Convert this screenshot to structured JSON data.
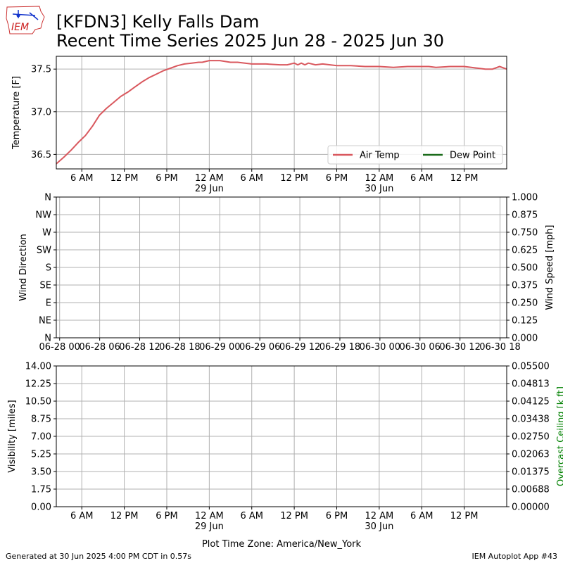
{
  "header": {
    "logo_text": "IEM",
    "title_line1": "[KFDN3] Kelly Falls Dam",
    "title_line2": "Recent Time Series 2025 Jun 28 - 2025 Jun 30"
  },
  "footer": {
    "generated": "Generated at 30 Jun 2025 4:00 PM CDT in 0.57s",
    "app": "IEM Autoplot App #43",
    "timezone": "Plot Time Zone: America/New_York"
  },
  "colors": {
    "air_temp": "#d9585e",
    "dew_point": "#1a6b1a",
    "grid": "#b0b0b0",
    "ceiling_label": "#008000"
  },
  "chart_data": [
    {
      "type": "line",
      "ylabel": "Temperature [F]",
      "ylim": [
        36.33,
        37.65
      ],
      "yticks": [
        36.5,
        37.0,
        37.5
      ],
      "ytick_labels": [
        "36.5",
        "37.0",
        "37.5"
      ],
      "xlim": [
        2.4,
        66.0
      ],
      "x_unit": "hours after 2025-06-28 00:00 America/New_York",
      "xticks": [
        6,
        12,
        18,
        24,
        30,
        36,
        42,
        48,
        54,
        60
      ],
      "xtick_labels": [
        "6 AM",
        "12 PM",
        "6 PM",
        "12 AM",
        "6 AM",
        "12 PM",
        "6 PM",
        "12 AM",
        "6 AM",
        "12 PM"
      ],
      "xtick_sublabels": [
        "",
        "",
        "",
        "29 Jun",
        "",
        "",
        "",
        "30 Jun",
        "",
        ""
      ],
      "grid": true,
      "legend_loc": "lower right",
      "legend": [
        "Air Temp",
        "Dew Point"
      ],
      "series": [
        {
          "name": "Air Temp",
          "x": [
            2.4,
            3.5,
            4.5,
            5.5,
            6.5,
            7.5,
            8.5,
            9.5,
            10.5,
            11.5,
            12.5,
            13.5,
            14.5,
            15.5,
            16.5,
            17.5,
            18.5,
            19.5,
            20.5,
            21.5,
            22.5,
            23.0,
            24.0,
            25.5,
            27.0,
            28.0,
            30.0,
            32.0,
            34.0,
            35.0,
            36.0,
            36.5,
            37.0,
            37.5,
            38.0,
            39.0,
            40.0,
            42.0,
            43.0,
            44.0,
            46.0,
            48.0,
            50.0,
            52.0,
            54.0,
            55.0,
            56.0,
            58.0,
            60.0,
            62.0,
            63.0,
            64.0,
            65.0,
            66.0
          ],
          "values": [
            36.39,
            36.47,
            36.55,
            36.64,
            36.72,
            36.83,
            36.96,
            37.04,
            37.11,
            37.18,
            37.23,
            37.29,
            37.35,
            37.4,
            37.44,
            37.48,
            37.51,
            37.54,
            37.56,
            37.57,
            37.58,
            37.58,
            37.6,
            37.6,
            37.58,
            37.58,
            37.56,
            37.56,
            37.55,
            37.55,
            37.57,
            37.55,
            37.57,
            37.55,
            37.57,
            37.55,
            37.56,
            37.54,
            37.54,
            37.54,
            37.53,
            37.53,
            37.52,
            37.53,
            37.53,
            37.53,
            37.52,
            37.53,
            37.53,
            37.51,
            37.5,
            37.5,
            37.53,
            37.5
          ]
        },
        {
          "name": "Dew Point",
          "x": [],
          "values": []
        }
      ]
    },
    {
      "type": "line",
      "ylabel": "Wind Direction",
      "y2label": "Wind Speed [mph]",
      "ytick_labels": [
        "N",
        "NE",
        "E",
        "SE",
        "S",
        "SW",
        "W",
        "NW",
        "N"
      ],
      "ylim": [
        0,
        360
      ],
      "y2lim": [
        0,
        1
      ],
      "y2tick_labels": [
        "0.000",
        "0.125",
        "0.250",
        "0.375",
        "0.500",
        "0.625",
        "0.750",
        "0.875",
        "1.000"
      ],
      "xlim": [
        -0.5,
        67.0
      ],
      "xticks": [
        0,
        6,
        12,
        18,
        24,
        30,
        36,
        42,
        48,
        54,
        60,
        66
      ],
      "xtick_labels": [
        "06-28 00",
        "06-28 06",
        "06-28 12",
        "06-28 18",
        "06-29 00",
        "06-29 06",
        "06-29 12",
        "06-29 18",
        "06-30 00",
        "06-30 06",
        "06-30 12",
        "06-30 18"
      ],
      "grid": true,
      "series": []
    },
    {
      "type": "line",
      "ylabel": "Visibility [miles]",
      "y2label": "Overcast Ceiling [k ft]",
      "ylim": [
        0,
        14
      ],
      "ytick_labels": [
        "0.00",
        "1.75",
        "3.50",
        "5.25",
        "7.00",
        "8.75",
        "10.50",
        "12.25",
        "14.00"
      ],
      "y2lim": [
        0,
        0.055
      ],
      "y2tick_labels": [
        "0.00000",
        "0.00688",
        "0.01375",
        "0.02063",
        "0.02750",
        "0.03438",
        "0.04125",
        "0.04813",
        "0.05500"
      ],
      "xlim": [
        2.4,
        66.0
      ],
      "xticks": [
        6,
        12,
        18,
        24,
        30,
        36,
        42,
        48,
        54,
        60
      ],
      "xtick_labels": [
        "6 AM",
        "12 PM",
        "6 PM",
        "12 AM",
        "6 AM",
        "12 PM",
        "6 PM",
        "12 AM",
        "6 AM",
        "12 PM"
      ],
      "xtick_sublabels": [
        "",
        "",
        "",
        "29 Jun",
        "",
        "",
        "",
        "30 Jun",
        "",
        ""
      ],
      "xlabel": "Plot Time Zone: America/New_York",
      "grid": true,
      "series": []
    }
  ]
}
